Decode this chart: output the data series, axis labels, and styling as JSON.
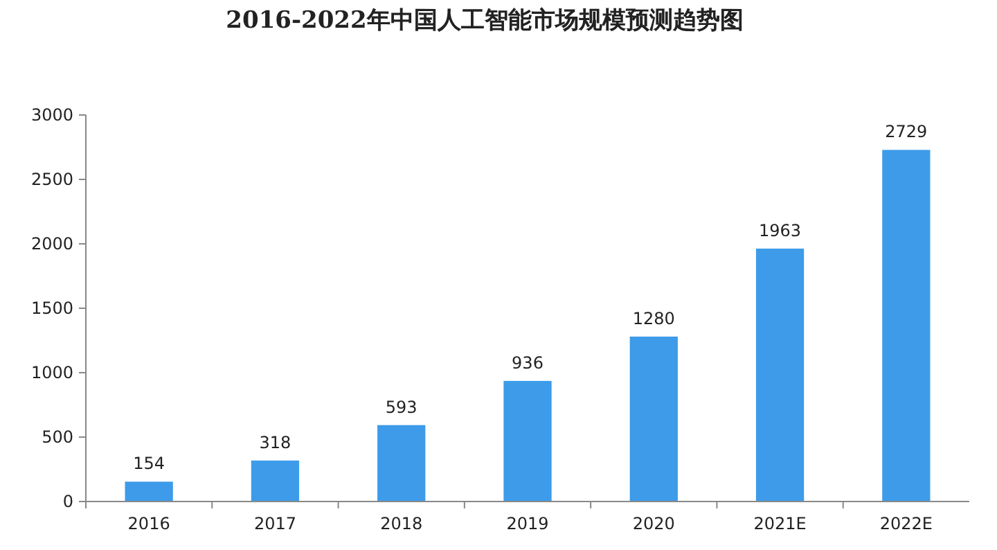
{
  "chart_data": {
    "type": "bar",
    "title": "2016-2022年中国人工智能市场规模预测趋势图",
    "categories": [
      "2016",
      "2017",
      "2018",
      "2019",
      "2020",
      "2021E",
      "2022E"
    ],
    "values": [
      154,
      318,
      593,
      936,
      1280,
      1963,
      2729
    ],
    "color": "#3d9be9",
    "ylim": [
      0,
      3000
    ],
    "yticks": [
      0,
      500,
      1000,
      1500,
      2000,
      2500,
      3000
    ],
    "data_labels": true
  }
}
